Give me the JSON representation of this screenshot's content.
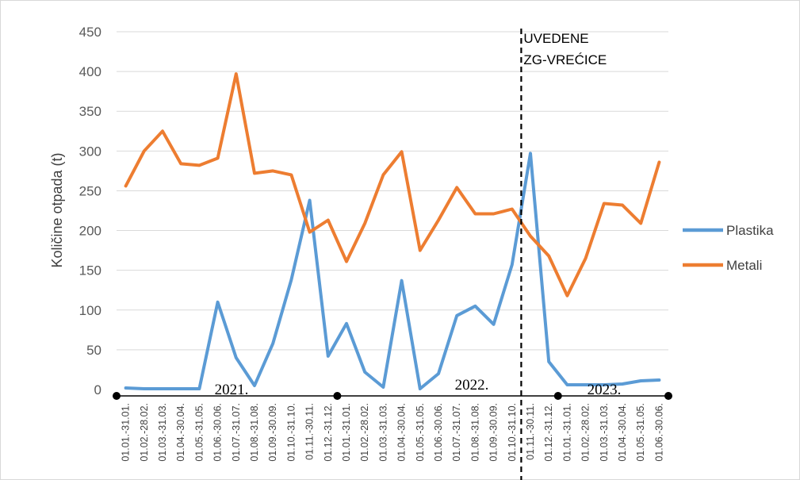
{
  "chart_data": {
    "type": "line",
    "ylabel": "Količine otpada (t)",
    "ylim": [
      0,
      450
    ],
    "yticks": [
      0,
      50,
      100,
      150,
      200,
      250,
      300,
      350,
      400,
      450
    ],
    "grid": true,
    "legend_position": "right",
    "categories": [
      "01.01.-31.01.",
      "01.02.-28.02.",
      "01.03.-31.03.",
      "01.04.-30.04.",
      "01.05.-31.05.",
      "01.06.-30.06.",
      "01.07.-31.07.",
      "01.08.-31.08.",
      "01.09.-30.09.",
      "01.10.-31.10.",
      "01.11.-30.11.",
      "01.12.-31.12.",
      "01.01.-31.01.",
      "01.02.-28.02.",
      "01.03.-31.03.",
      "01.04.-30.04.",
      "01.05.-31.05.",
      "01.06.-30.06.",
      "01.07.-31.07.",
      "01.08.-31.08.",
      "01.09.-30.09.",
      "01.10.-31.10.",
      "01.11.-30.11.",
      "01.12.-31.12.",
      "01.01.-31.01.",
      "01.02.-28.02.",
      "01.03.-31.03.",
      "01.04.-30.04.",
      "01.05.-31.05.",
      "01.06.-30.06."
    ],
    "series": [
      {
        "name": "Plastika",
        "color": "#5B9BD5",
        "values": [
          2,
          1,
          1,
          1,
          1,
          110,
          40,
          5,
          58,
          138,
          238,
          42,
          83,
          22,
          3,
          137,
          1,
          20,
          93,
          105,
          82,
          157,
          297,
          35,
          6,
          6,
          6,
          7,
          11,
          12
        ]
      },
      {
        "name": "Metali",
        "color": "#ED7D31",
        "values": [
          256,
          300,
          325,
          284,
          282,
          291,
          397,
          272,
          275,
          270,
          198,
          213,
          161,
          209,
          270,
          299,
          175,
          213,
          254,
          221,
          221,
          227,
          193,
          168,
          118,
          165,
          234,
          232,
          209,
          286
        ]
      }
    ],
    "annotation": {
      "line1": "UVEDENE",
      "line2": "ZG-VREĆICE",
      "after_index": 21
    },
    "years": [
      "2021.",
      "2022.",
      "2023."
    ],
    "colors": {
      "grid": "#D9D9D9",
      "axis": "#000000",
      "marker_line": "#000000"
    }
  }
}
